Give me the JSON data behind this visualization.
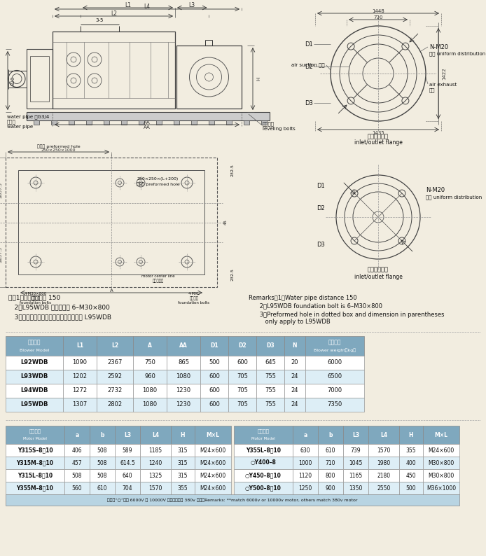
{
  "bg_color": "#f2ede0",
  "notes_cn": [
    "注：1、输水管间距为 150",
    "   2、L95WDB 地脚螺栓为 6–M30×800",
    "   3、虚线框内预留孔及括号内尺寸仅用于 L95WDB"
  ],
  "notes_en_line1": "Remarks：1、Water pipe distance 150",
  "notes_en_line2": "      2、L95WDB foundation bolt is 6–M30×800",
  "notes_en_line3": "      3、Preformed hole in dotted box and dimension in parentheses",
  "notes_en_line4": "         only apply to L95WDB",
  "table1_header": [
    "风机型号\nBlower Model",
    "L1",
    "L2",
    "A",
    "AA",
    "D1",
    "D2",
    "D3",
    "N",
    "主机重量\nBlower weight（kg）"
  ],
  "table1_data": [
    [
      "L92WDB",
      "1090",
      "2367",
      "750",
      "865",
      "500",
      "600",
      "645",
      "20",
      "6000"
    ],
    [
      "L93WDB",
      "1202",
      "2592",
      "960",
      "1080",
      "600",
      "705",
      "755",
      "24",
      "6500"
    ],
    [
      "L94WDB",
      "1272",
      "2732",
      "1080",
      "1230",
      "600",
      "705",
      "755",
      "24",
      "7000"
    ],
    [
      "L95WDB",
      "1307",
      "2802",
      "1080",
      "1230",
      "600",
      "705",
      "755",
      "24",
      "7350"
    ]
  ],
  "table2_header_left": [
    "电机型号\nMotor Model",
    "a",
    "b",
    "L3",
    "L4",
    "H",
    "M×L"
  ],
  "table2_header_right": [
    "电机型号\nMotor Model",
    "a",
    "b",
    "L3",
    "L4",
    "H",
    "M×L"
  ],
  "table2_data_left": [
    [
      "Y315S–8，10",
      "406",
      "508",
      "589",
      "1185",
      "315",
      "M24×600"
    ],
    [
      "Y315M–8，10",
      "457",
      "508",
      "614.5",
      "1240",
      "315",
      "M24×600"
    ],
    [
      "Y315L–8，10",
      "508",
      "508",
      "640",
      "1325",
      "315",
      "M24×600"
    ],
    [
      "Y355M–8，10",
      "560",
      "610",
      "704",
      "1570",
      "355",
      "M24×600"
    ]
  ],
  "table2_data_right": [
    [
      "Y355L–8，10",
      "630",
      "610",
      "739",
      "1570",
      "355",
      "M24×600"
    ],
    [
      "○Y400–8",
      "1000",
      "710",
      "1045",
      "1980",
      "400",
      "M30×800"
    ],
    [
      "○Y450–8，10",
      "1120",
      "800",
      "1165",
      "2180",
      "450",
      "M30×800"
    ],
    [
      "○Y500–8，10",
      "1250",
      "900",
      "1350",
      "2550",
      "500",
      "M36×1000"
    ]
  ],
  "table2_footer": "注：带“○”选用 6000V 或 10000V 电机，其余为 380v 电机。Remarks: **match 6000v or 10000v motor, others match 380v motor",
  "header_color": "#7fa8be",
  "row_color1": "#ffffff",
  "row_color2": "#ddeef6",
  "footer_color": "#b8d4e2"
}
